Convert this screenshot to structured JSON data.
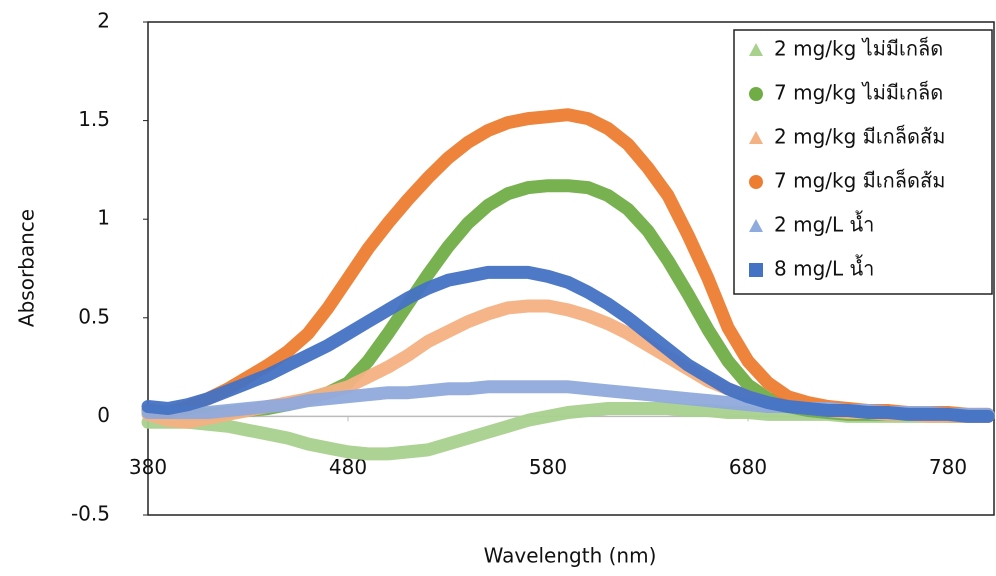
{
  "chart_data": {
    "type": "line",
    "x_label": "Wavelength (nm)",
    "y_label": "Absorbance",
    "x": [
      380,
      390,
      400,
      410,
      420,
      430,
      440,
      450,
      460,
      470,
      480,
      490,
      500,
      510,
      520,
      530,
      540,
      550,
      560,
      570,
      580,
      590,
      600,
      610,
      620,
      630,
      640,
      650,
      660,
      670,
      680,
      690,
      700,
      710,
      720,
      730,
      740,
      750,
      760,
      770,
      780,
      790,
      800
    ],
    "xlim": [
      380,
      803
    ],
    "xticks": [
      380,
      480,
      580,
      680,
      780
    ],
    "ylim": [
      -0.5,
      2
    ],
    "yticks": [
      -0.5,
      0,
      0.5,
      1,
      1.5,
      2
    ],
    "legend": "top-right",
    "series": [
      {
        "name": "2 mg/kg ไม่มีเกล็ด",
        "color": "#a9d18e",
        "marker": "triangle",
        "values": [
          -0.03,
          -0.03,
          -0.03,
          -0.04,
          -0.05,
          -0.07,
          -0.09,
          -0.11,
          -0.14,
          -0.16,
          -0.18,
          -0.19,
          -0.19,
          -0.18,
          -0.17,
          -0.14,
          -0.11,
          -0.08,
          -0.05,
          -0.02,
          0,
          0.02,
          0.03,
          0.04,
          0.04,
          0.04,
          0.04,
          0.03,
          0.03,
          0.02,
          0.02,
          0.01,
          0.01,
          0.01,
          0.01,
          0,
          0,
          0,
          0,
          0,
          0,
          0,
          0
        ]
      },
      {
        "name": "7 mg/kg ไม่มีเกล็ด",
        "color": "#70ad47",
        "marker": "circle",
        "values": [
          0.03,
          0.02,
          0.01,
          0.01,
          0.02,
          0.03,
          0.04,
          0.06,
          0.09,
          0.12,
          0.17,
          0.28,
          0.42,
          0.57,
          0.72,
          0.86,
          0.98,
          1.07,
          1.13,
          1.16,
          1.17,
          1.17,
          1.16,
          1.12,
          1.05,
          0.94,
          0.79,
          0.62,
          0.44,
          0.28,
          0.16,
          0.09,
          0.05,
          0.03,
          0.02,
          0.01,
          0.01,
          0.01,
          0.01,
          0.01,
          0,
          0,
          0
        ]
      },
      {
        "name": "2 mg/kg มีเกล็ดส้ม",
        "color": "#f4b183",
        "marker": "triangle",
        "values": [
          0.01,
          -0.02,
          -0.03,
          -0.01,
          0.01,
          0.03,
          0.05,
          0.07,
          0.09,
          0.12,
          0.15,
          0.2,
          0.25,
          0.31,
          0.38,
          0.43,
          0.48,
          0.52,
          0.55,
          0.56,
          0.56,
          0.54,
          0.51,
          0.47,
          0.42,
          0.36,
          0.3,
          0.24,
          0.18,
          0.14,
          0.1,
          0.07,
          0.05,
          0.04,
          0.03,
          0.02,
          0.02,
          0.01,
          0.01,
          0,
          0,
          0,
          0
        ]
      },
      {
        "name": "7 mg/kg มีเกล็ดส้ม",
        "color": "#ed7d31",
        "marker": "circle",
        "values": [
          0.03,
          0.02,
          0.05,
          0.09,
          0.14,
          0.2,
          0.26,
          0.33,
          0.42,
          0.55,
          0.7,
          0.85,
          0.98,
          1.1,
          1.21,
          1.31,
          1.39,
          1.45,
          1.49,
          1.51,
          1.52,
          1.53,
          1.51,
          1.46,
          1.38,
          1.26,
          1.12,
          0.92,
          0.7,
          0.45,
          0.28,
          0.17,
          0.1,
          0.07,
          0.05,
          0.04,
          0.03,
          0.03,
          0.02,
          0.02,
          0.02,
          0.01,
          0.01
        ]
      },
      {
        "name": "2 mg/L น้ำ",
        "color": "#8faadc",
        "marker": "triangle",
        "values": [
          0.02,
          0.02,
          0.02,
          0.02,
          0.03,
          0.04,
          0.05,
          0.06,
          0.08,
          0.09,
          0.1,
          0.11,
          0.12,
          0.12,
          0.13,
          0.14,
          0.14,
          0.15,
          0.15,
          0.15,
          0.15,
          0.15,
          0.14,
          0.13,
          0.12,
          0.11,
          0.1,
          0.09,
          0.08,
          0.07,
          0.06,
          0.05,
          0.05,
          0.04,
          0.04,
          0.03,
          0.03,
          0.02,
          0.02,
          0.02,
          0.01,
          0.01,
          0.01
        ]
      },
      {
        "name": "8 mg/L น้ำ",
        "color": "#4472c4",
        "marker": "square",
        "values": [
          0.05,
          0.04,
          0.06,
          0.09,
          0.13,
          0.17,
          0.21,
          0.26,
          0.31,
          0.36,
          0.42,
          0.48,
          0.54,
          0.6,
          0.65,
          0.69,
          0.71,
          0.73,
          0.73,
          0.73,
          0.71,
          0.68,
          0.63,
          0.57,
          0.5,
          0.42,
          0.34,
          0.26,
          0.2,
          0.14,
          0.1,
          0.07,
          0.05,
          0.04,
          0.03,
          0.03,
          0.02,
          0.02,
          0.01,
          0.01,
          0.01,
          0,
          0
        ]
      }
    ]
  }
}
